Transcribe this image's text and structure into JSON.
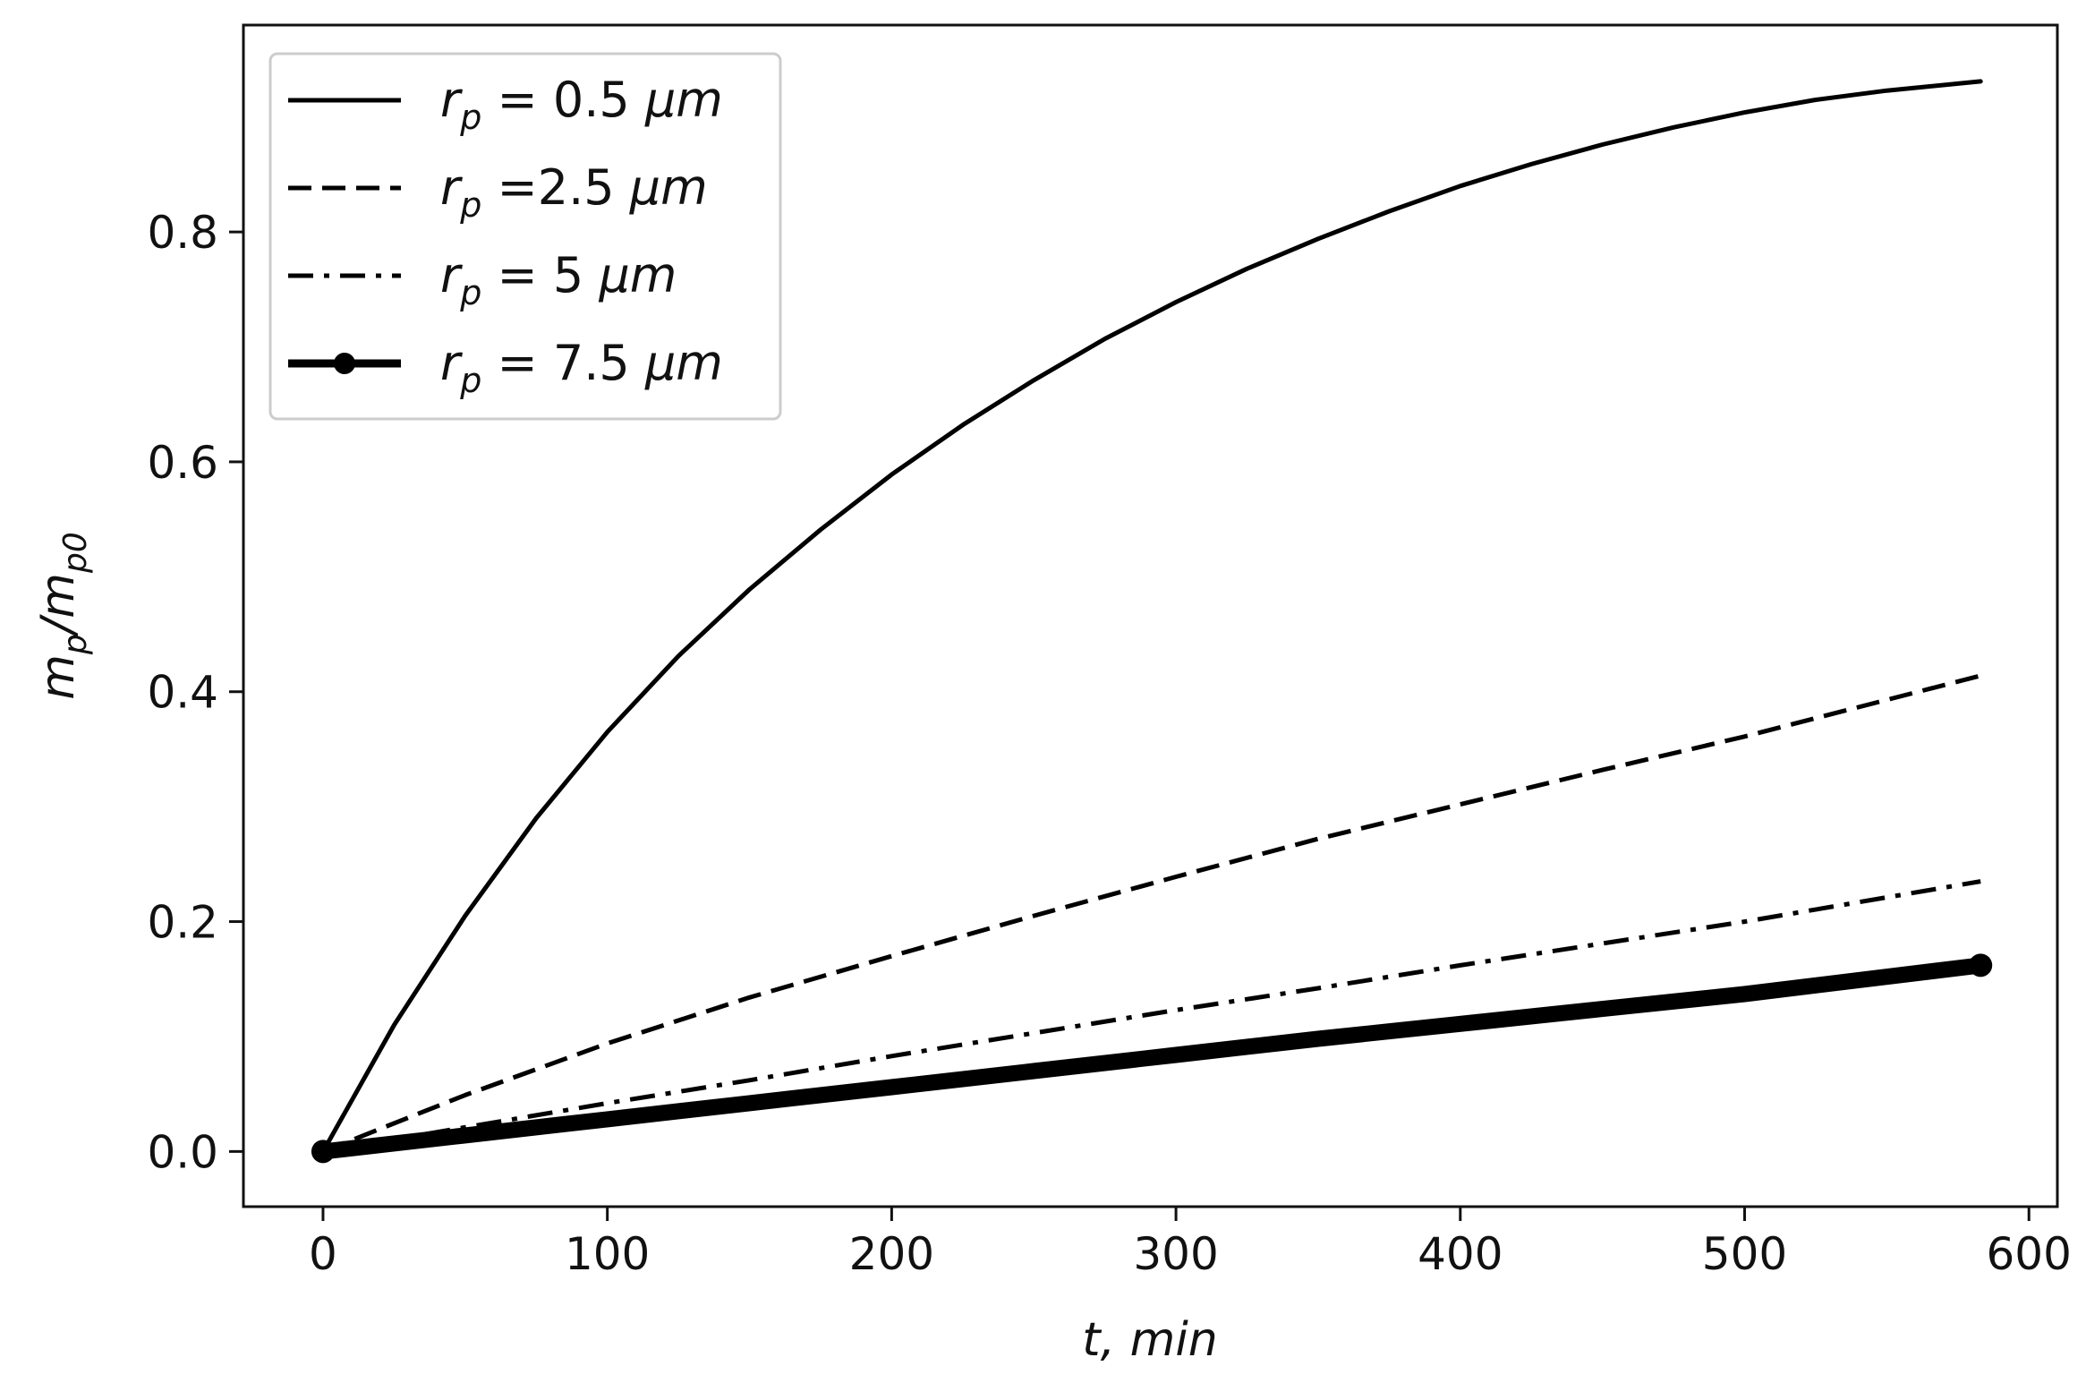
{
  "chart_data": {
    "type": "line",
    "xlabel": "t, min",
    "ylabel": {
      "m": "m",
      "p": "p",
      "slash": "/",
      "m0": "m",
      "p0": "p0"
    },
    "xlim": [
      -28,
      610
    ],
    "ylim": [
      -0.048,
      0.98
    ],
    "xticks": [
      "0",
      "100",
      "200",
      "300",
      "400",
      "500",
      "600"
    ],
    "yticks": [
      "0.0",
      "0.2",
      "0.4",
      "0.6",
      "0.8"
    ],
    "grid": false,
    "legend_position": "top-left",
    "series": [
      {
        "name": "r_p = 0.5 µm",
        "legend": {
          "r": "r",
          "sub": "p",
          "rest": " = 0.5 ",
          "unit": "μm"
        },
        "style": "solid",
        "color": "#000000",
        "x": [
          0,
          25,
          50,
          75,
          100,
          125,
          150,
          175,
          200,
          225,
          250,
          275,
          300,
          325,
          350,
          375,
          400,
          425,
          450,
          475,
          500,
          525,
          550,
          583
        ],
        "y": [
          0.0,
          0.11,
          0.205,
          0.29,
          0.365,
          0.431,
          0.489,
          0.541,
          0.589,
          0.632,
          0.671,
          0.707,
          0.739,
          0.768,
          0.794,
          0.818,
          0.84,
          0.859,
          0.876,
          0.891,
          0.904,
          0.915,
          0.923,
          0.931
        ]
      },
      {
        "name": "r_p =2.5 µm",
        "legend": {
          "r": "r",
          "sub": "p",
          "rest": " =2.5 ",
          "unit": "μm"
        },
        "style": "dashed",
        "color": "#000000",
        "x": [
          0,
          50,
          100,
          150,
          200,
          250,
          300,
          350,
          400,
          450,
          500,
          583
        ],
        "y": [
          0.0,
          0.049,
          0.094,
          0.134,
          0.17,
          0.205,
          0.239,
          0.272,
          0.302,
          0.332,
          0.361,
          0.414
        ]
      },
      {
        "name": "r_p = 5 µm",
        "legend": {
          "r": "r",
          "sub": "p",
          "rest": " = 5 ",
          "unit": "μm"
        },
        "style": "dashdot",
        "color": "#000000",
        "x": [
          0,
          50,
          100,
          150,
          200,
          250,
          300,
          350,
          400,
          450,
          500,
          583
        ],
        "y": [
          0.0,
          0.021,
          0.042,
          0.062,
          0.083,
          0.103,
          0.123,
          0.142,
          0.162,
          0.181,
          0.2,
          0.235
        ]
      },
      {
        "name": "r_p = 7.5 µm",
        "legend": {
          "r": "r",
          "sub": "p",
          "rest": " = 7.5 ",
          "unit": "μm"
        },
        "style": "marker-line",
        "color": "#000000",
        "x": [
          0,
          50,
          100,
          150,
          200,
          250,
          300,
          350,
          400,
          450,
          500,
          583
        ],
        "y": [
          0.0,
          0.014,
          0.028,
          0.042,
          0.056,
          0.07,
          0.084,
          0.098,
          0.111,
          0.124,
          0.137,
          0.162
        ]
      }
    ]
  }
}
